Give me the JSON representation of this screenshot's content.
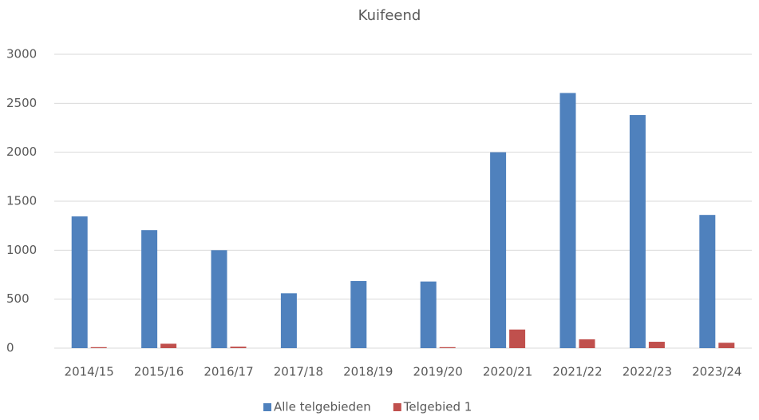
{
  "chart_data": {
    "type": "bar",
    "title": "Kuifeend",
    "categories": [
      "2014/15",
      "2015/16",
      "2016/17",
      "2017/18",
      "2018/19",
      "2019/20",
      "2020/21",
      "2021/22",
      "2022/23",
      "2023/24"
    ],
    "series": [
      {
        "name": "Alle telgebieden",
        "color": "#4f81bd",
        "values": [
          1345,
          1205,
          1000,
          560,
          685,
          680,
          2000,
          2605,
          2380,
          1360
        ]
      },
      {
        "name": "Telgebied 1",
        "color": "#c0504d",
        "values": [
          10,
          45,
          15,
          0,
          0,
          10,
          190,
          90,
          65,
          55
        ]
      }
    ],
    "ylim": [
      0,
      3000
    ],
    "yticks": [
      0,
      500,
      1000,
      1500,
      2000,
      2500,
      3000
    ],
    "grid": true,
    "legend": "bottom"
  }
}
